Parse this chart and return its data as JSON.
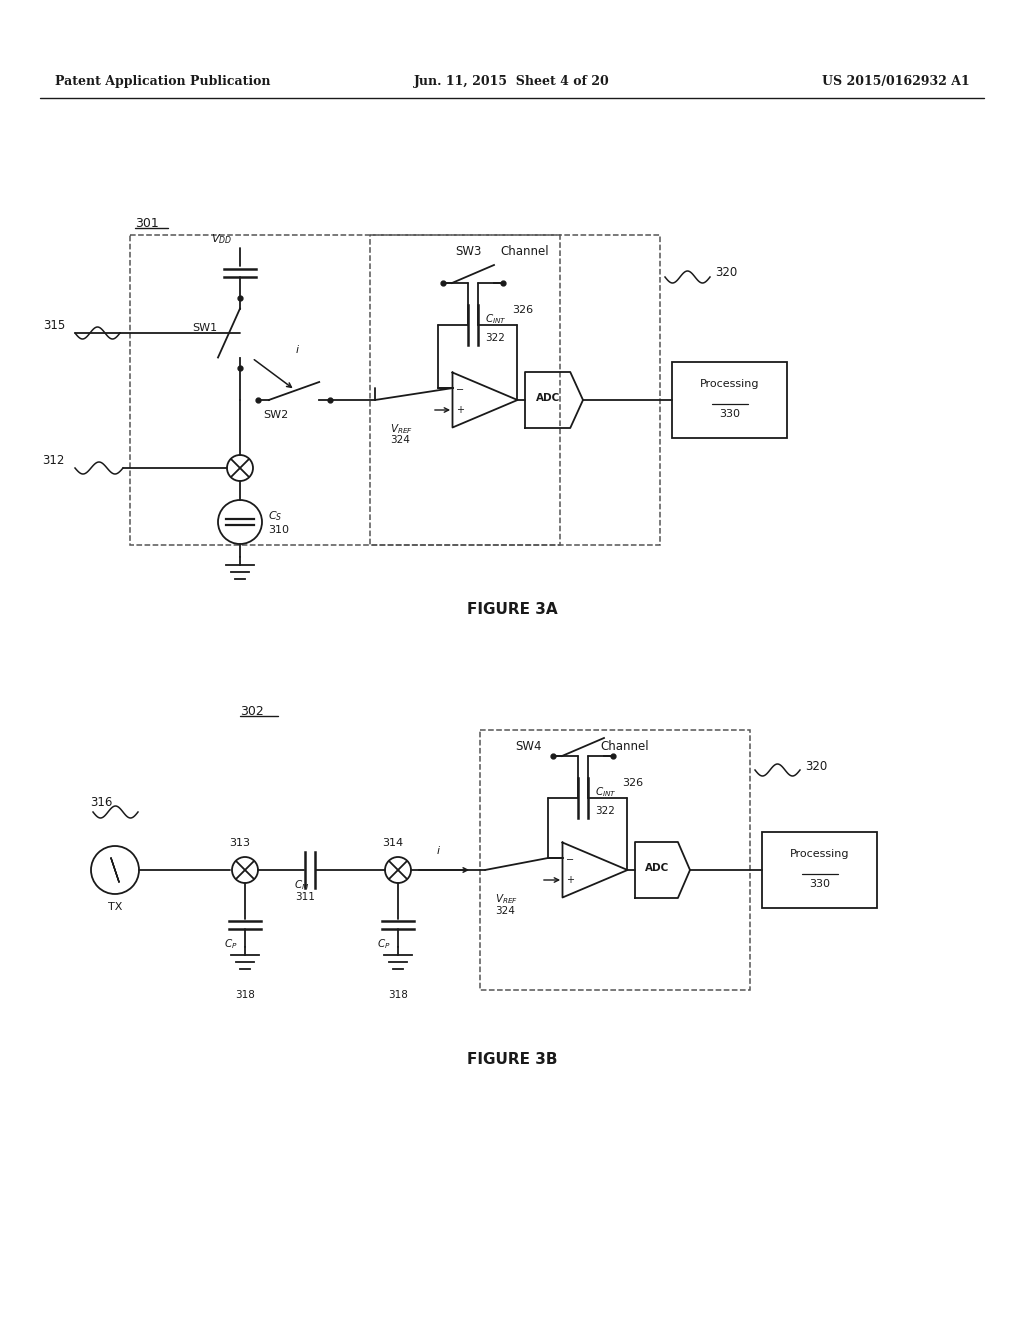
{
  "header_left": "Patent Application Publication",
  "header_mid": "Jun. 11, 2015  Sheet 4 of 20",
  "header_right": "US 2015/0162932 A1",
  "fig3a_label": "FIGURE 3A",
  "fig3b_label": "FIGURE 3B",
  "bg_color": "#ffffff",
  "line_color": "#1a1a1a"
}
